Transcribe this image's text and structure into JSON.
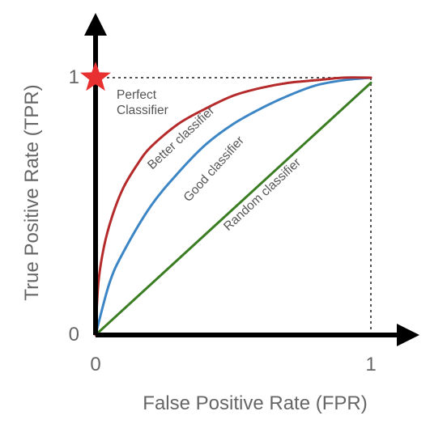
{
  "chart_data": {
    "type": "line",
    "title": "",
    "xlabel": "False Positive Rate (FPR)",
    "ylabel": "True Positive Rate (TPR)",
    "xlim": [
      0,
      1
    ],
    "ylim": [
      0,
      1
    ],
    "x_ticks": [
      "0",
      "1"
    ],
    "y_ticks": [
      "0",
      "1"
    ],
    "grid": false,
    "legend": "none",
    "series": [
      {
        "name": "Better classifier",
        "color": "#b52b2b",
        "x": [
          0,
          0.01,
          0.03,
          0.06,
          0.1,
          0.15,
          0.2,
          0.3,
          0.4,
          0.5,
          0.6,
          0.7,
          0.8,
          0.9,
          1
        ],
        "y": [
          0,
          0.2,
          0.34,
          0.46,
          0.57,
          0.66,
          0.73,
          0.82,
          0.88,
          0.93,
          0.96,
          0.98,
          0.99,
          1,
          1
        ]
      },
      {
        "name": "Good classifier",
        "color": "#3d86c6",
        "x": [
          0,
          0.05,
          0.1,
          0.2,
          0.3,
          0.4,
          0.5,
          0.6,
          0.7,
          0.8,
          0.9,
          1
        ],
        "y": [
          0,
          0.2,
          0.32,
          0.5,
          0.63,
          0.74,
          0.82,
          0.88,
          0.93,
          0.97,
          0.99,
          1
        ]
      },
      {
        "name": "Random classifier",
        "color": "#3a7d23",
        "x": [
          0,
          1
        ],
        "y": [
          0,
          0.98
        ]
      }
    ],
    "annotations": [
      {
        "label": "Perfect\nClassifier",
        "marker": "star",
        "color": "#e83030",
        "x": 0,
        "y": 1
      }
    ],
    "reference_lines": [
      {
        "style": "dotted",
        "color": "#555555",
        "from": [
          0,
          1
        ],
        "to": [
          1,
          1
        ]
      },
      {
        "style": "dotted",
        "color": "#555555",
        "from": [
          1,
          0
        ],
        "to": [
          1,
          1
        ]
      }
    ]
  }
}
